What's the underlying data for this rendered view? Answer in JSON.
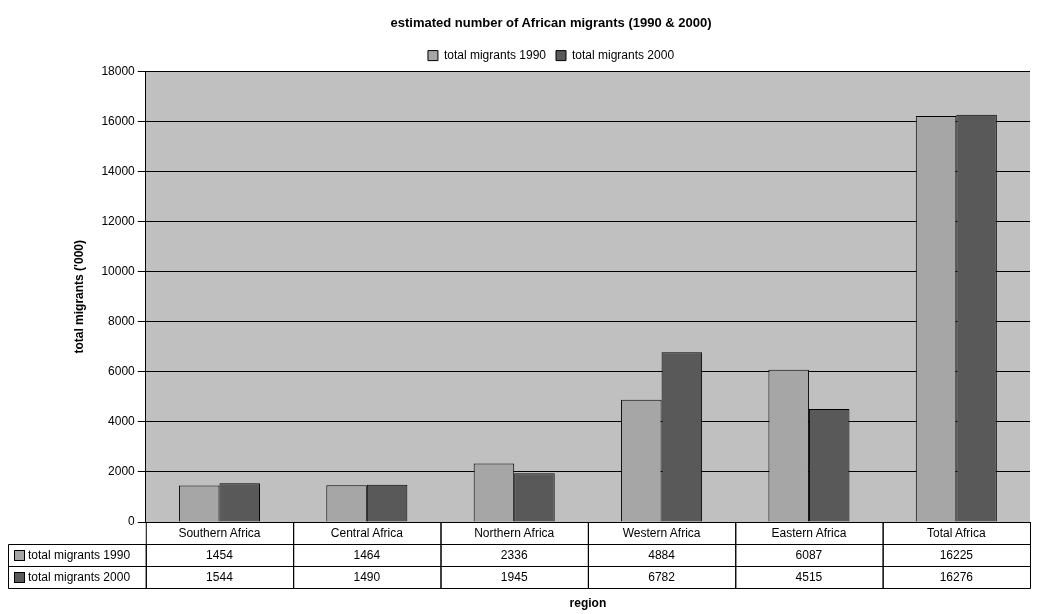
{
  "chart_data": {
    "type": "bar",
    "title": "estimated number of African migrants (1990 & 2000)",
    "xlabel": "region",
    "ylabel": "total migrants ('000)",
    "categories": [
      "Southern Africa",
      "Central Africa",
      "Northern Africa",
      "Western Africa",
      "Eastern Africa",
      "Total Africa"
    ],
    "series": [
      {
        "name": "total migrants 1990",
        "color": "#a6a6a6",
        "values": [
          1454,
          1464,
          2336,
          4884,
          6087,
          16225
        ]
      },
      {
        "name": "total migrants 2000",
        "color": "#595959",
        "values": [
          1544,
          1490,
          1945,
          6782,
          4515,
          16276
        ]
      }
    ],
    "ylim": [
      0,
      18000
    ],
    "yticks": [
      0,
      2000,
      4000,
      6000,
      8000,
      10000,
      12000,
      14000,
      16000,
      18000
    ],
    "grid": "y",
    "legend": "top",
    "data_labels": true
  }
}
